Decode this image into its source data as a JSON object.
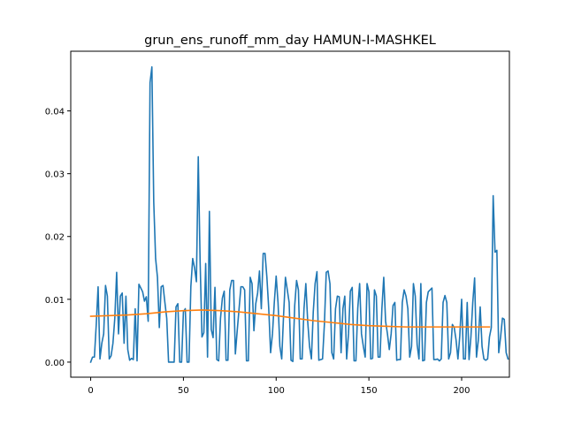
{
  "chart_data": {
    "type": "line",
    "title": "grun_ens_runoff_mm_day HAMUN-I-MASHKEL",
    "xlabel": "",
    "ylabel": "",
    "xlim": [
      -10.75,
      225.75
    ],
    "ylim": [
      -0.0024,
      0.0495
    ],
    "grid": false,
    "x_ticks": [
      {
        "value": 0,
        "label": "0"
      },
      {
        "value": 50,
        "label": "50"
      },
      {
        "value": 100,
        "label": "100"
      },
      {
        "value": 150,
        "label": "150"
      },
      {
        "value": 200,
        "label": "200"
      }
    ],
    "y_ticks": [
      {
        "value": 0.0,
        "label": "0.00"
      },
      {
        "value": 0.01,
        "label": "0.01"
      },
      {
        "value": 0.02,
        "label": "0.02"
      },
      {
        "value": 0.03,
        "label": "0.03"
      },
      {
        "value": 0.04,
        "label": "0.04"
      }
    ],
    "series": [
      {
        "color": "#1f77b4",
        "x_start": 0,
        "values": [
          0.0,
          0.0008,
          0.0008,
          0.006,
          0.012,
          0.0005,
          0.003,
          0.0045,
          0.0122,
          0.0105,
          0.0005,
          0.001,
          0.003,
          0.007,
          0.0143,
          0.0045,
          0.0105,
          0.011,
          0.003,
          0.0105,
          0.002,
          0.0003,
          0.0006,
          0.0004,
          0.0085,
          0.0002,
          0.0124,
          0.0118,
          0.0112,
          0.0097,
          0.0104,
          0.0065,
          0.0445,
          0.047,
          0.0255,
          0.0165,
          0.0135,
          0.0055,
          0.012,
          0.0122,
          0.0095,
          0.007,
          0.0,
          0.0,
          0.0,
          0.0,
          0.0088,
          0.0093,
          0.0,
          0.0,
          0.008,
          0.0085,
          0.0,
          0.0,
          0.012,
          0.0165,
          0.015,
          0.0128,
          0.0327,
          0.016,
          0.004,
          0.0047,
          0.0157,
          0.0008,
          0.024,
          0.0052,
          0.0039,
          0.0119,
          0.0004,
          0.0002,
          0.007,
          0.0102,
          0.0113,
          0.0003,
          0.0003,
          0.0115,
          0.013,
          0.013,
          0.0013,
          0.005,
          0.0085,
          0.012,
          0.012,
          0.0115,
          0.0002,
          0.0002,
          0.0135,
          0.0125,
          0.005,
          0.0093,
          0.011,
          0.0145,
          0.0085,
          0.0173,
          0.0173,
          0.0135,
          0.0085,
          0.0015,
          0.0045,
          0.0095,
          0.0137,
          0.0095,
          0.0025,
          0.0005,
          0.0075,
          0.0135,
          0.0115,
          0.0095,
          0.0003,
          0.0001,
          0.009,
          0.013,
          0.0115,
          0.0005,
          0.0005,
          0.0085,
          0.0125,
          0.0065,
          0.0025,
          0.0005,
          0.008,
          0.0125,
          0.0144,
          0.0003,
          0.0004,
          0.0005,
          0.006,
          0.0143,
          0.0145,
          0.0125,
          0.0015,
          0.0005,
          0.0085,
          0.0105,
          0.0104,
          0.0015,
          0.0085,
          0.0105,
          0.0005,
          0.0045,
          0.0113,
          0.0119,
          0.0002,
          0.0002,
          0.0086,
          0.0125,
          0.0045,
          0.0025,
          0.0008,
          0.0125,
          0.0112,
          0.0005,
          0.0006,
          0.0115,
          0.0105,
          0.0008,
          0.0008,
          0.0085,
          0.0135,
          0.0065,
          0.0045,
          0.002,
          0.0045,
          0.009,
          0.0095,
          0.0003,
          0.0004,
          0.0004,
          0.0095,
          0.0115,
          0.0105,
          0.0085,
          0.0008,
          0.0025,
          0.0125,
          0.0105,
          0.0028,
          0.0005,
          0.0125,
          0.0002,
          0.0003,
          0.0095,
          0.0112,
          0.0115,
          0.0118,
          0.0004,
          0.0004,
          0.0005,
          0.0002,
          0.0005,
          0.0095,
          0.0106,
          0.0095,
          0.0005,
          0.0015,
          0.006,
          0.0055,
          0.0035,
          0.0005,
          0.0042,
          0.01,
          0.0005,
          0.0005,
          0.0095,
          0.0004,
          0.004,
          0.0095,
          0.0134,
          0.0008,
          0.0035,
          0.0088,
          0.0025,
          0.0005,
          0.0003,
          0.0005,
          0.004,
          0.0055,
          0.0265,
          0.0175,
          0.0178,
          0.0015,
          0.004,
          0.007,
          0.0068,
          0.0015,
          0.0005
        ]
      },
      {
        "color": "#ff7f0e",
        "x": [
          0,
          10,
          20,
          30,
          40,
          50,
          60,
          70,
          80,
          90,
          100,
          110,
          120,
          130,
          140,
          150,
          160,
          170,
          180,
          190,
          200,
          210,
          215
        ],
        "values": [
          0.0073,
          0.0074,
          0.0075,
          0.0077,
          0.008,
          0.0082,
          0.0083,
          0.0082,
          0.008,
          0.0077,
          0.0074,
          0.007,
          0.0066,
          0.0063,
          0.006,
          0.0058,
          0.0057,
          0.0056,
          0.0056,
          0.0056,
          0.0056,
          0.0056,
          0.0056
        ]
      }
    ]
  }
}
